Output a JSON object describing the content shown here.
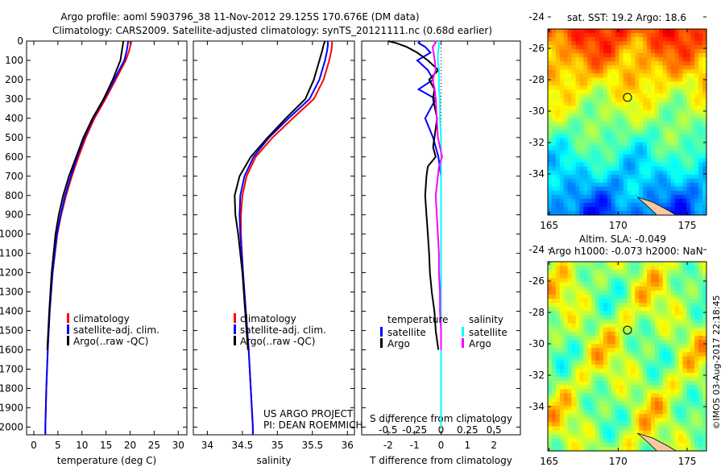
{
  "title_line1": "Argo profile: aoml 5903796_38 11-Nov-2012 29.125S 170.676E (DM data)",
  "title_line2": "Climatology: CARS2009. Satellite-adjusted climatology: synTS_20121111.nc (0.68d earlier)",
  "colors": {
    "climatology": "#ff0000",
    "satellite": "#0000ff",
    "argo": "#000000",
    "sal_satellite": "#00ffff",
    "sal_argo": "#ff00ff"
  },
  "chart_data": [
    {
      "type": "line",
      "name": "temperature",
      "xlabel": "temperature (deg C)",
      "xlim": [
        -1.5,
        31.8
      ],
      "ylim": [
        0,
        2040
      ],
      "y_reversed": true,
      "yticks": [
        0,
        100,
        200,
        300,
        400,
        500,
        600,
        700,
        800,
        900,
        1000,
        1100,
        1200,
        1300,
        1400,
        1500,
        1600,
        1700,
        1800,
        1900,
        2000
      ],
      "xticks": [
        0,
        5,
        10,
        15,
        20,
        25,
        30
      ],
      "depth": [
        0,
        20,
        50,
        100,
        200,
        300,
        400,
        500,
        600,
        700,
        800,
        900,
        1000,
        1200,
        1400,
        1600,
        1800,
        2000,
        2040
      ],
      "series": [
        {
          "name": "climatology",
          "color_key": "climatology",
          "values": [
            20.3,
            20.1,
            19.8,
            19.1,
            17.0,
            14.9,
            12.6,
            10.8,
            9.3,
            7.9,
            6.7,
            5.7,
            4.9,
            3.9,
            3.3,
            2.9,
            2.6,
            2.4,
            2.4
          ]
        },
        {
          "name": "satellite-adj. clim.",
          "color_key": "satellite",
          "values": [
            19.6,
            19.5,
            19.3,
            18.8,
            16.7,
            14.6,
            12.3,
            10.5,
            9.0,
            7.7,
            6.5,
            5.6,
            4.8,
            3.9,
            3.3,
            2.9,
            2.6,
            2.4,
            2.4
          ]
        },
        {
          "name": "Argo(..raw -QC)",
          "color_key": "argo",
          "values": [
            18.6,
            18.5,
            18.3,
            18.0,
            16.4,
            14.5,
            12.2,
            10.3,
            8.8,
            7.3,
            6.1,
            5.2,
            4.5,
            3.7,
            3.2,
            2.8,
            null,
            null,
            null
          ]
        }
      ]
    },
    {
      "type": "line",
      "name": "salinity",
      "xlabel": "salinity",
      "xlim": [
        33.8,
        36.1
      ],
      "ylim": [
        0,
        2040
      ],
      "y_reversed": true,
      "xticks": [
        34,
        34.5,
        35,
        35.5,
        36
      ],
      "depth": [
        0,
        20,
        50,
        100,
        200,
        300,
        400,
        500,
        600,
        700,
        800,
        900,
        1000,
        1200,
        1400,
        1600,
        1800,
        2000,
        2040
      ],
      "series": [
        {
          "name": "climatology",
          "color_key": "climatology",
          "values": [
            35.78,
            35.78,
            35.77,
            35.74,
            35.66,
            35.52,
            35.22,
            34.93,
            34.69,
            34.56,
            34.5,
            34.48,
            34.48,
            34.51,
            34.55,
            34.59,
            34.62,
            34.65,
            34.65
          ]
        },
        {
          "name": "satellite-adj. clim.",
          "color_key": "satellite",
          "values": [
            35.72,
            35.72,
            35.71,
            35.68,
            35.6,
            35.46,
            35.16,
            34.88,
            34.66,
            34.53,
            34.47,
            34.46,
            34.47,
            34.51,
            34.55,
            34.59,
            34.62,
            34.65,
            34.65
          ]
        },
        {
          "name": "Argo(..raw -QC)",
          "color_key": "argo",
          "values": [
            35.68,
            35.66,
            35.64,
            35.6,
            35.52,
            35.4,
            35.12,
            34.86,
            34.62,
            34.46,
            34.39,
            34.4,
            34.44,
            34.5,
            34.54,
            34.58,
            null,
            null,
            null
          ]
        }
      ]
    },
    {
      "type": "line",
      "name": "differences",
      "xlabel": "T difference from climatology",
      "xlabel_top": "S difference from climatology",
      "xlim": [
        -3,
        3
      ],
      "xticks": [
        -2,
        -1,
        0,
        1,
        2
      ],
      "xticks_s": [
        -0.5,
        -0.25,
        0,
        0.25,
        0.5
      ],
      "s_scale": 4,
      "ylim": [
        0,
        2040
      ],
      "y_reversed": true,
      "depth": [
        0,
        10,
        30,
        60,
        100,
        150,
        200,
        250,
        300,
        400,
        500,
        550,
        600,
        650,
        700,
        800,
        900,
        1000,
        1100,
        1200,
        1300,
        1400,
        1500,
        1600,
        1800,
        2000
      ],
      "series": [
        {
          "name": "temperature satellite",
          "color_key": "satellite",
          "scale": "T",
          "values": [
            -0.8,
            -0.85,
            -0.6,
            -0.4,
            -0.9,
            -0.5,
            -0.3,
            -0.85,
            -0.2,
            -0.6,
            -0.3,
            -0.2,
            -0.1,
            -0.05,
            0,
            0,
            0,
            0,
            0,
            0,
            0,
            0,
            0,
            0,
            0,
            0
          ]
        },
        {
          "name": "temperature Argo",
          "color_key": "argo",
          "scale": "T",
          "values": [
            -2.0,
            -1.7,
            -1.3,
            -0.9,
            -0.5,
            -0.1,
            -0.45,
            -0.25,
            -0.3,
            -0.15,
            -0.25,
            -0.3,
            -0.2,
            -0.5,
            -0.55,
            -0.6,
            -0.55,
            -0.5,
            -0.45,
            -0.42,
            -0.35,
            -0.25,
            -0.2,
            -0.1,
            null,
            null
          ]
        },
        {
          "name": "salinity satellite",
          "color_key": "sal_satellite",
          "scale": "S",
          "values": [
            -0.02,
            -0.02,
            -0.02,
            -0.03,
            -0.03,
            -0.02,
            -0.02,
            -0.02,
            -0.01,
            -0.01,
            0,
            0,
            0,
            0,
            0,
            0,
            0,
            0,
            0,
            0,
            0,
            0,
            0,
            0,
            0,
            0
          ]
        },
        {
          "name": "salinity Argo",
          "color_key": "sal_argo",
          "scale": "S",
          "values": [
            -0.06,
            -0.05,
            -0.08,
            -0.07,
            -0.06,
            -0.05,
            -0.08,
            -0.06,
            -0.05,
            -0.04,
            -0.03,
            -0.01,
            0.01,
            -0.02,
            -0.03,
            -0.05,
            -0.04,
            -0.03,
            -0.02,
            -0.02,
            -0.01,
            -0.01,
            0,
            0,
            null,
            null
          ]
        }
      ]
    }
  ],
  "legend_left": [
    "climatology",
    "satellite-adj. clim.",
    "Argo(..raw -QC)"
  ],
  "legend_diff": {
    "temp_header": "temperature",
    "sal_header": "salinity",
    "satellite": "satellite",
    "argo": "Argo"
  },
  "project": {
    "line1": "US ARGO PROJECT",
    "line2": "PI: DEAN ROEMMICH"
  },
  "map_sst": {
    "title": "sat. SST: 19.2 Argo: 18.6",
    "lat_ticks": [
      -24,
      -26,
      -28,
      -30,
      -32,
      -34
    ],
    "lon_ticks": [
      165,
      170,
      175
    ],
    "profile_lon": 170.676,
    "profile_lat": -29.125
  },
  "map_sla": {
    "title1": "Altim. SLA: -0.049",
    "title2": "Argo h1000: -0.073 h2000: NaN",
    "lat_ticks": [
      -24,
      -26,
      -28,
      -30,
      -32,
      -34
    ],
    "lon_ticks": [
      165,
      170,
      175
    ]
  },
  "watermark": "©IMOS 03-Aug-2017 22:18:45"
}
